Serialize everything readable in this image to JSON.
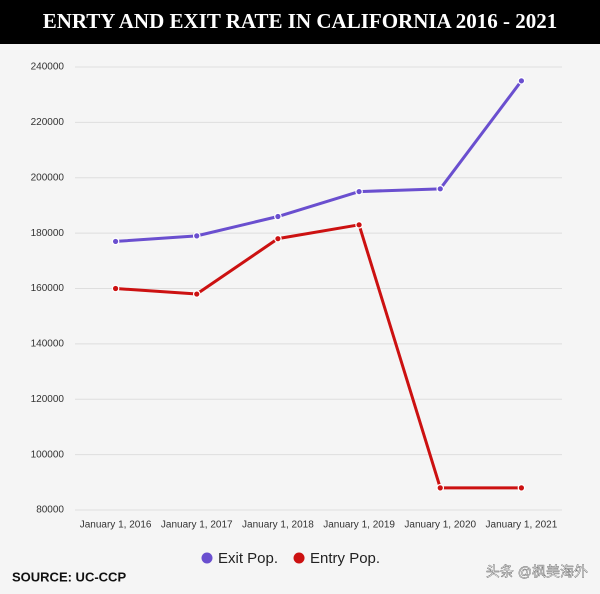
{
  "chart_data": {
    "type": "line",
    "title": "ENRTY AND EXIT RATE IN CALIFORNIA 2016 - 2021",
    "categories": [
      "January 1, 2016",
      "January 1, 2017",
      "January 1, 2018",
      "January 1, 2019",
      "January 1, 2020",
      "January 1, 2021"
    ],
    "series": [
      {
        "name": "Exit Pop.",
        "color": "#6a4fcf",
        "values": [
          177000,
          179000,
          186000,
          195000,
          196000,
          235000
        ]
      },
      {
        "name": "Entry Pop.",
        "color": "#cc1111",
        "values": [
          160000,
          158000,
          178000,
          183000,
          88000,
          88000
        ]
      }
    ],
    "ylim": [
      80000,
      240000
    ],
    "yticks": [
      80000,
      100000,
      120000,
      140000,
      160000,
      180000,
      200000,
      220000,
      240000
    ],
    "grid": true,
    "legend": "bottom",
    "source": "SOURCE: UC-CCP",
    "watermark": "头条 @枫美海外"
  }
}
